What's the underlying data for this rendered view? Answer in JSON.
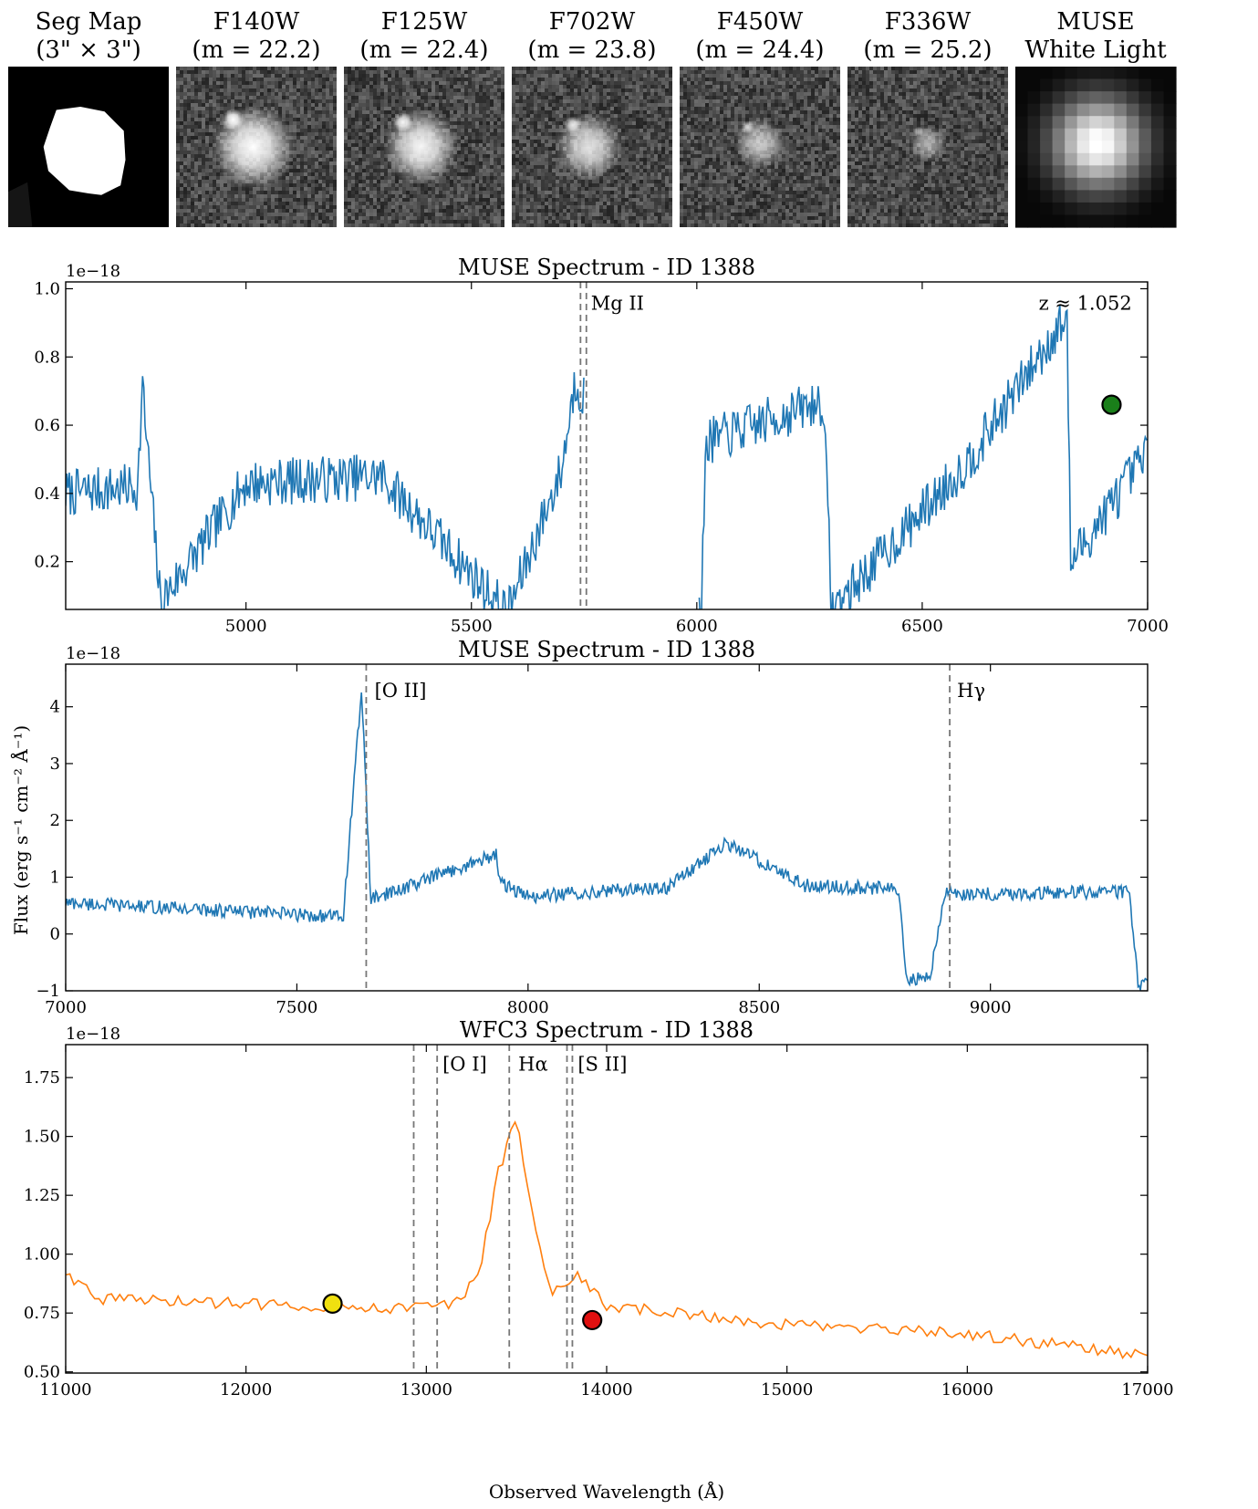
{
  "stamps": [
    {
      "title": "Seg Map",
      "subtitle": "(3\" × 3\")",
      "kind": "segmap"
    },
    {
      "title": "F140W",
      "subtitle": "(m = 22.2)",
      "kind": "blob",
      "brightness": 1.0,
      "size": 1.0
    },
    {
      "title": "F125W",
      "subtitle": "(m = 22.4)",
      "kind": "blob",
      "brightness": 0.95,
      "size": 0.9
    },
    {
      "title": "F702W",
      "subtitle": "(m = 23.8)",
      "kind": "blob",
      "brightness": 0.85,
      "size": 0.8
    },
    {
      "title": "F450W",
      "subtitle": "(m = 24.4)",
      "kind": "blob",
      "brightness": 0.7,
      "size": 0.6
    },
    {
      "title": "F336W",
      "subtitle": "(m = 25.2)",
      "kind": "blob",
      "brightness": 0.55,
      "size": 0.45
    },
    {
      "title": "MUSE",
      "subtitle": "White Light",
      "kind": "pixel"
    }
  ],
  "shared_ylabel": "Flux (erg s⁻¹ cm⁻² Å⁻¹)",
  "shared_xlabel": "Observed Wavelength (Å)",
  "chart_data": [
    {
      "type": "line",
      "title": "MUSE Spectrum - ID 1388",
      "offset_text": "1e−18",
      "xlim": [
        4600,
        7000
      ],
      "ylim": [
        0.06,
        1.02
      ],
      "xticks": [
        5000,
        5500,
        6000,
        6500,
        7000
      ],
      "yticks": [
        0.2,
        0.4,
        0.6,
        0.8,
        1.0
      ],
      "ytick_labels": [
        "0.2",
        "0.4",
        "0.6",
        "0.8",
        "1.0"
      ],
      "color": "#1f77b4",
      "gap": [
        5750,
        6005
      ],
      "key_points": [
        [
          4600,
          0.4
        ],
        [
          4760,
          0.42
        ],
        [
          4770,
          0.71
        ],
        [
          4810,
          0.08
        ],
        [
          5000,
          0.43
        ],
        [
          5300,
          0.45
        ],
        [
          5580,
          0.05
        ],
        [
          5700,
          0.47
        ],
        [
          5730,
          0.73
        ],
        [
          5760,
          0.66
        ],
        [
          6010,
          0.05
        ],
        [
          6020,
          0.55
        ],
        [
          6280,
          0.67
        ],
        [
          6300,
          0.06
        ],
        [
          6600,
          0.49
        ],
        [
          6820,
          0.92
        ],
        [
          6830,
          0.2
        ],
        [
          7000,
          0.52
        ]
      ],
      "vlines": [
        5742,
        5755
      ],
      "annotations": [
        {
          "text": "Mg II",
          "x": 5765,
          "y": 0.96
        },
        {
          "text": "z ≈ 1.052",
          "x": 6965,
          "y": 0.96,
          "anchor": "end"
        }
      ],
      "markers": [
        {
          "x": 6920,
          "y": 0.66,
          "color": "#1a7f1a"
        }
      ]
    },
    {
      "type": "line",
      "title": "MUSE Spectrum - ID 1388",
      "offset_text": "1e−18",
      "xlim": [
        7000,
        9340
      ],
      "ylim": [
        -1.0,
        4.75
      ],
      "xticks": [
        7000,
        7500,
        8000,
        8500,
        9000
      ],
      "yticks": [
        -1,
        0,
        1,
        2,
        3,
        4
      ],
      "ytick_labels": [
        "−1",
        "0",
        "1",
        "2",
        "3",
        "4"
      ],
      "color": "#1f77b4",
      "key_points": [
        [
          7000,
          0.55
        ],
        [
          7250,
          0.45
        ],
        [
          7600,
          0.3
        ],
        [
          7640,
          4.3
        ],
        [
          7660,
          0.6
        ],
        [
          7930,
          1.4
        ],
        [
          7940,
          0.9
        ],
        [
          8000,
          0.65
        ],
        [
          8150,
          0.75
        ],
        [
          8300,
          0.82
        ],
        [
          8430,
          1.6
        ],
        [
          8600,
          0.85
        ],
        [
          8800,
          0.8
        ],
        [
          8820,
          -0.8
        ],
        [
          8870,
          -0.75
        ],
        [
          8900,
          0.7
        ],
        [
          9300,
          0.75
        ],
        [
          9320,
          -0.9
        ]
      ],
      "vlines": [
        7650,
        8912
      ],
      "annotations": [
        {
          "text": "[O II]",
          "x": 7668,
          "y": 4.3
        },
        {
          "text": "Hγ",
          "x": 8928,
          "y": 4.3
        }
      ]
    },
    {
      "type": "line",
      "title": "WFC3 Spectrum - ID 1388",
      "offset_text": "1e−18",
      "xlim": [
        11000,
        17000
      ],
      "ylim": [
        0.495,
        1.89
      ],
      "xticks": [
        11000,
        12000,
        13000,
        14000,
        15000,
        16000,
        17000
      ],
      "yticks": [
        0.5,
        0.75,
        1.0,
        1.25,
        1.5,
        1.75
      ],
      "ytick_labels": [
        "0.50",
        "0.75",
        "1.00",
        "1.25",
        "1.50",
        "1.75"
      ],
      "color": "#ff7f0e",
      "key_points": [
        [
          11000,
          0.92
        ],
        [
          11200,
          0.81
        ],
        [
          12000,
          0.79
        ],
        [
          12500,
          0.78
        ],
        [
          12900,
          0.77
        ],
        [
          13200,
          0.8
        ],
        [
          13300,
          0.95
        ],
        [
          13400,
          1.35
        ],
        [
          13500,
          1.58
        ],
        [
          13600,
          1.1
        ],
        [
          13700,
          0.85
        ],
        [
          13850,
          0.9
        ],
        [
          14000,
          0.78
        ],
        [
          15000,
          0.7
        ],
        [
          16000,
          0.66
        ],
        [
          16900,
          0.58
        ],
        [
          17000,
          0.55
        ]
      ],
      "vlines": [
        12930,
        13060,
        13460,
        13780,
        13810
      ],
      "annotations": [
        {
          "text": "[O I]",
          "x": 13090,
          "y": 1.81
        },
        {
          "text": "Hα",
          "x": 13510,
          "y": 1.81
        },
        {
          "text": "[S II]",
          "x": 13840,
          "y": 1.81
        }
      ],
      "markers": [
        {
          "x": 12480,
          "y": 0.79,
          "color": "#f0e010"
        },
        {
          "x": 13920,
          "y": 0.72,
          "color": "#e01010"
        }
      ]
    }
  ]
}
